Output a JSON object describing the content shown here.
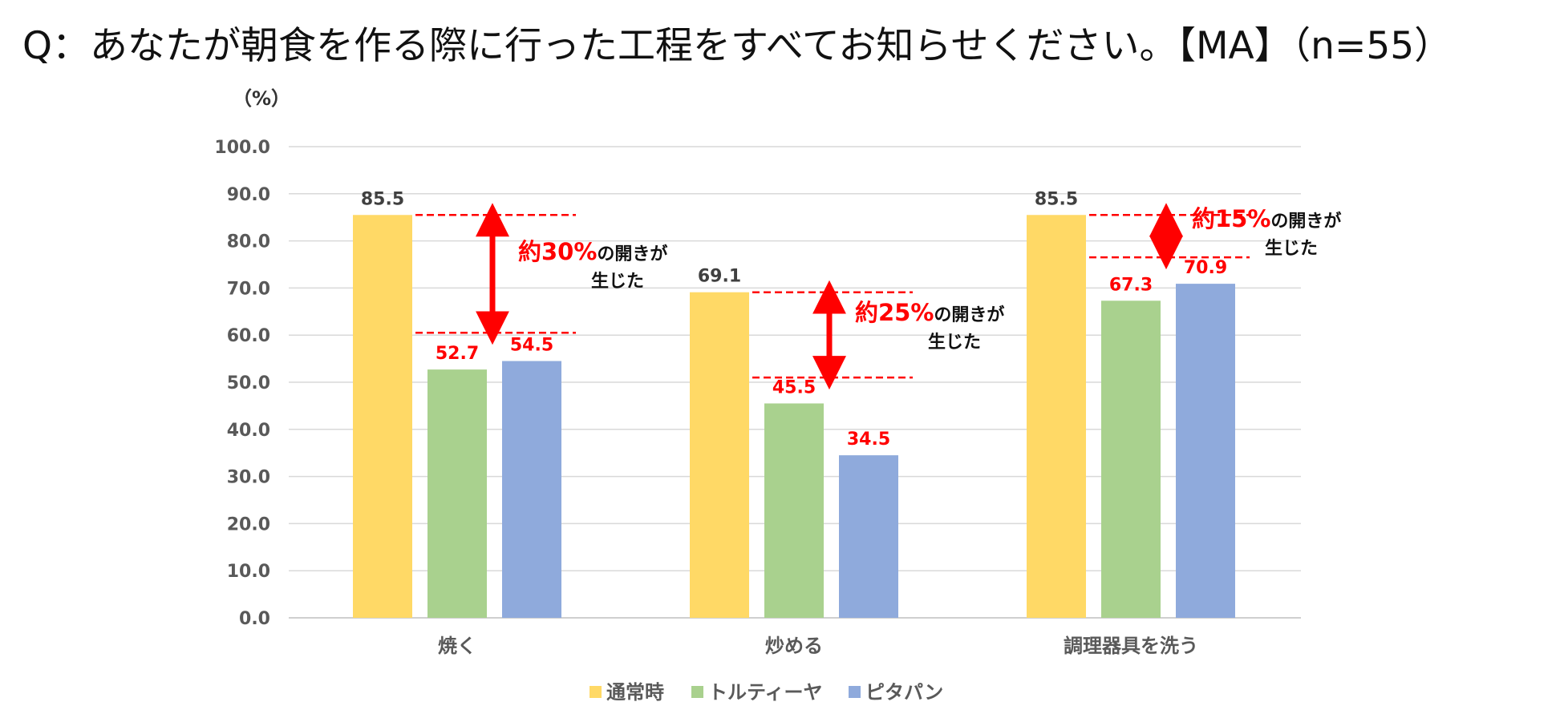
{
  "title": "Q：あなたが朝食を作る際に行った工程をすべてお知らせください。【MA】（n=55）",
  "chart_data": {
    "type": "bar",
    "unit_label": "（%）",
    "ylim": [
      0,
      100
    ],
    "yticks": [
      "0.0",
      "10.0",
      "20.0",
      "30.0",
      "40.0",
      "50.0",
      "60.0",
      "70.0",
      "80.0",
      "90.0",
      "100.0"
    ],
    "categories": [
      "焼く",
      "炒める",
      "調理器具を洗う"
    ],
    "series": [
      {
        "name": "通常時",
        "color": "#FFD966",
        "label_color": "#404040",
        "values": [
          85.5,
          69.1,
          85.5
        ],
        "labels": [
          "85.5",
          "69.1",
          "85.5"
        ]
      },
      {
        "name": "トルティーヤ",
        "color": "#A9D18E",
        "label_color": "#FF0000",
        "values": [
          52.7,
          45.5,
          67.3
        ],
        "labels": [
          "52.7",
          "45.5",
          "67.3"
        ]
      },
      {
        "name": "ピタパン",
        "color": "#8FAADC",
        "label_color": "#FF0000",
        "values": [
          54.5,
          34.5,
          70.9
        ],
        "labels": [
          "54.5",
          "34.5",
          "70.9"
        ]
      }
    ],
    "grid": true,
    "legend": "bottom",
    "annotations": [
      {
        "category_index": 0,
        "upper": 85.5,
        "lower": 60.5,
        "pct": "約30%",
        "text1": "の開きが",
        "text2": "生じた"
      },
      {
        "category_index": 1,
        "upper": 69.1,
        "lower": 51.0,
        "pct": "約25%",
        "text1": "の開きが",
        "text2": "生じた"
      },
      {
        "category_index": 2,
        "upper": 85.5,
        "lower": 76.5,
        "pct": "約15%",
        "text1": "の開きが",
        "text2": "生じた"
      }
    ],
    "annotation_color": "#FF0000"
  }
}
